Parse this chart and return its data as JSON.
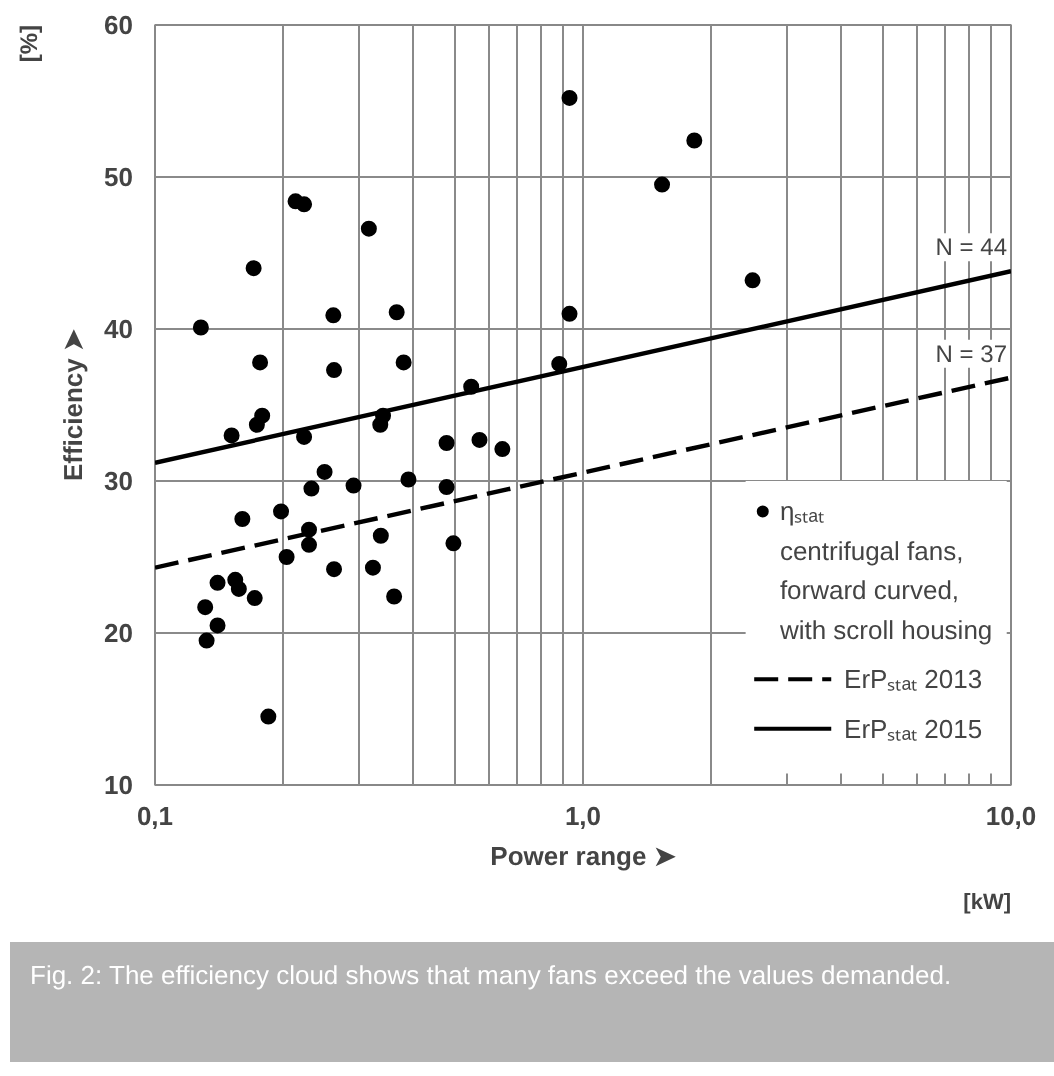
{
  "chart_data": {
    "type": "scatter",
    "xlabel": "Power range ➤",
    "ylabel": "Efficiency ➤",
    "log": "x",
    "xlim": [
      0.1,
      10
    ],
    "ylim": [
      10,
      60
    ],
    "xticks": [
      {
        "value": 0.1,
        "label": "0,1"
      },
      {
        "value": 0.2,
        "label": null
      },
      {
        "value": 0.3,
        "label": null
      },
      {
        "value": 0.4,
        "label": null
      },
      {
        "value": 0.5,
        "label": null
      },
      {
        "value": 0.6,
        "label": null
      },
      {
        "value": 0.7,
        "label": null
      },
      {
        "value": 0.8,
        "label": null
      },
      {
        "value": 0.9,
        "label": null
      },
      {
        "value": 1,
        "label": "1,0"
      },
      {
        "value": 2,
        "label": null
      },
      {
        "value": 3,
        "label": null
      },
      {
        "value": 4,
        "label": null
      },
      {
        "value": 5,
        "label": null
      },
      {
        "value": 6,
        "label": null
      },
      {
        "value": 7,
        "label": null
      },
      {
        "value": 8,
        "label": null
      },
      {
        "value": 9,
        "label": null
      },
      {
        "value": 10,
        "label": "10,0"
      }
    ],
    "yticks": [
      10,
      20,
      30,
      40,
      50,
      60
    ],
    "grid": true,
    "legend": "bottom right",
    "series": [
      {
        "name": "ηₛₜₐₜ",
        "marker": "circle",
        "color": "#000000",
        "x": [
          0.128,
          0.17,
          0.213,
          0.223,
          0.316,
          0.261,
          0.367,
          0.93,
          0.93,
          0.176,
          0.262,
          0.381,
          0.88,
          0.548,
          0.178,
          0.173,
          0.151,
          0.223,
          0.341,
          0.336,
          0.48,
          0.573,
          0.648,
          0.249,
          0.232,
          0.291,
          0.391,
          0.48,
          0.197,
          0.16,
          0.229,
          0.229,
          0.203,
          0.337,
          0.498,
          0.262,
          0.323,
          0.14,
          0.154,
          0.157,
          0.171,
          0.362,
          0.131,
          0.14,
          0.132,
          0.184,
          1.82,
          1.53,
          2.49
        ],
        "values": [
          40.1,
          44.0,
          48.4,
          48.2,
          46.6,
          40.9,
          41.1,
          55.2,
          41.0,
          37.8,
          37.3,
          37.8,
          37.7,
          36.2,
          34.3,
          33.7,
          33.0,
          32.9,
          34.3,
          33.7,
          32.5,
          32.7,
          32.1,
          30.6,
          29.5,
          29.7,
          30.1,
          29.6,
          28.0,
          27.5,
          26.8,
          25.8,
          25.0,
          26.4,
          25.9,
          24.2,
          24.3,
          23.3,
          23.5,
          22.9,
          22.3,
          22.4,
          21.7,
          20.5,
          19.5,
          14.5,
          52.4,
          49.5,
          43.2
        ]
      },
      {
        "name": "ErPₛₜₐₜ 2013",
        "type": "line",
        "line_style": "dashed",
        "color": "#000000",
        "x": [
          0.1,
          10
        ],
        "values": [
          24.3,
          36.8
        ]
      },
      {
        "name": "ErPₛₜₐₜ 2015",
        "type": "line",
        "line_style": "solid",
        "color": "#000000",
        "x": [
          0.1,
          10
        ],
        "values": [
          31.2,
          43.8
        ]
      }
    ],
    "annotations": [
      "[%]",
      "[kW]",
      {
        "text": "N = 44",
        "x": 10,
        "y": 43.8
      },
      {
        "text": "N = 37",
        "x": 10,
        "y": 36.8
      },
      "centrifugal fans, forward curved, with scroll housing",
      "Fig. 2: The efficiency cloud shows that many fans exceed the values demanded."
    ]
  }
}
